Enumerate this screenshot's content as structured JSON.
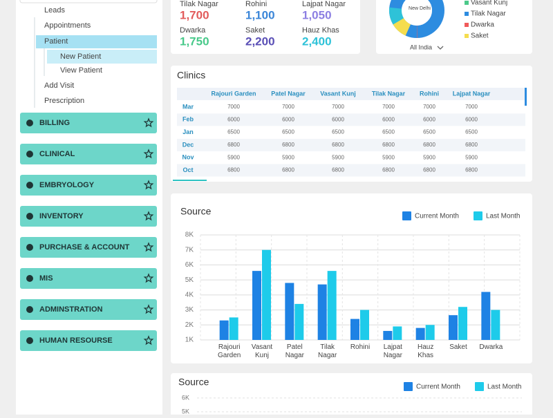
{
  "sidebar": {
    "items": [
      "Leads",
      "Appointments",
      "Patient",
      "New Patient",
      "View Patient",
      "Add Visit",
      "Prescription"
    ],
    "menus": [
      "BILLING",
      "CLINICAL",
      "EMBRYOLOGY",
      "INVENTORY",
      "PURCHASE & ACCOUNT",
      "MIS",
      "ADMINSTRATION",
      "HUMAN RESOURSE"
    ]
  },
  "stats": [
    {
      "label": "Tilak Nagar",
      "value": "1,700",
      "color": "#e25b5b"
    },
    {
      "label": "Rohini",
      "value": "1,100",
      "color": "#3b86d8"
    },
    {
      "label": "Lajpat Nagar",
      "value": "1,050",
      "color": "#8c7fe2"
    },
    {
      "label": "Dwarka",
      "value": "1,750",
      "color": "#48c98a"
    },
    {
      "label": "Saket",
      "value": "2,200",
      "color": "#5a4fb6"
    },
    {
      "label": "Hauz Khas",
      "value": "2,400",
      "color": "#2ec2d8"
    }
  ],
  "zone": {
    "center": "New Delhi",
    "selector": "All India",
    "legend": [
      {
        "name": "Vasant Kunj",
        "color": "#4cc98a"
      },
      {
        "name": "Tilak Nagar",
        "color": "#2d8ce0"
      },
      {
        "name": "Dwarka",
        "color": "#f05a5a"
      },
      {
        "name": "Saket",
        "color": "#f5dd4e"
      }
    ]
  },
  "clinics": {
    "title": "Clinics",
    "columns": [
      "Rajouri Garden",
      "Patel Nagar",
      "Vasant Kunj",
      "Tilak Nagar",
      "Rohini",
      "Lajpat Nagar"
    ],
    "rows": [
      {
        "month": "Mar",
        "values": [
          7000,
          7000,
          7000,
          7000,
          7000,
          7000
        ]
      },
      {
        "month": "Feb",
        "values": [
          6000,
          6000,
          6000,
          6000,
          6000,
          6000
        ]
      },
      {
        "month": "Jan",
        "values": [
          6500,
          6500,
          6500,
          6500,
          6500,
          6500
        ]
      },
      {
        "month": "Dec",
        "values": [
          6800,
          6800,
          6800,
          6800,
          6800,
          6800
        ]
      },
      {
        "month": "Nov",
        "values": [
          5900,
          5900,
          5900,
          5900,
          5900,
          5900
        ]
      },
      {
        "month": "Oct",
        "values": [
          6800,
          6800,
          6800,
          6800,
          6800,
          6800
        ]
      }
    ]
  },
  "chart_data": [
    {
      "type": "bar",
      "title": "Source",
      "categories": [
        "Rajouri Garden",
        "Vasant Kunj",
        "Patel Nagar",
        "Tilak Nagar",
        "Rohini",
        "Lajpat Nagar",
        "Hauz Khas",
        "Saket",
        "Dwarka"
      ],
      "series": [
        {
          "name": "Current Month",
          "color": "#1e82e4",
          "values": [
            2300,
            5600,
            4800,
            4700,
            2400,
            1600,
            1800,
            2650,
            4200
          ]
        },
        {
          "name": "Last Month",
          "color": "#1ecbea",
          "values": [
            2500,
            7000,
            3400,
            5600,
            3000,
            1900,
            2000,
            3200,
            3000
          ]
        }
      ],
      "ylim": [
        1000,
        8000
      ],
      "yticks": [
        {
          "value": 1000,
          "label": "1K"
        },
        {
          "value": 2000,
          "label": "2K"
        },
        {
          "value": 3000,
          "label": "3K"
        },
        {
          "value": 4000,
          "label": "4K"
        },
        {
          "value": 5000,
          "label": "5K"
        },
        {
          "value": 6000,
          "label": "6K"
        },
        {
          "value": 7000,
          "label": "7K"
        },
        {
          "value": 8000,
          "label": "8K"
        }
      ],
      "grid": true
    },
    {
      "type": "line",
      "title": "Source",
      "series": [
        {
          "name": "Current Month",
          "color": "#1e82e4"
        },
        {
          "name": "Last Month",
          "color": "#1ecbea"
        }
      ],
      "yticks": [
        {
          "value": 6000,
          "label": "6K"
        },
        {
          "value": 5000,
          "label": "5K"
        }
      ]
    }
  ]
}
